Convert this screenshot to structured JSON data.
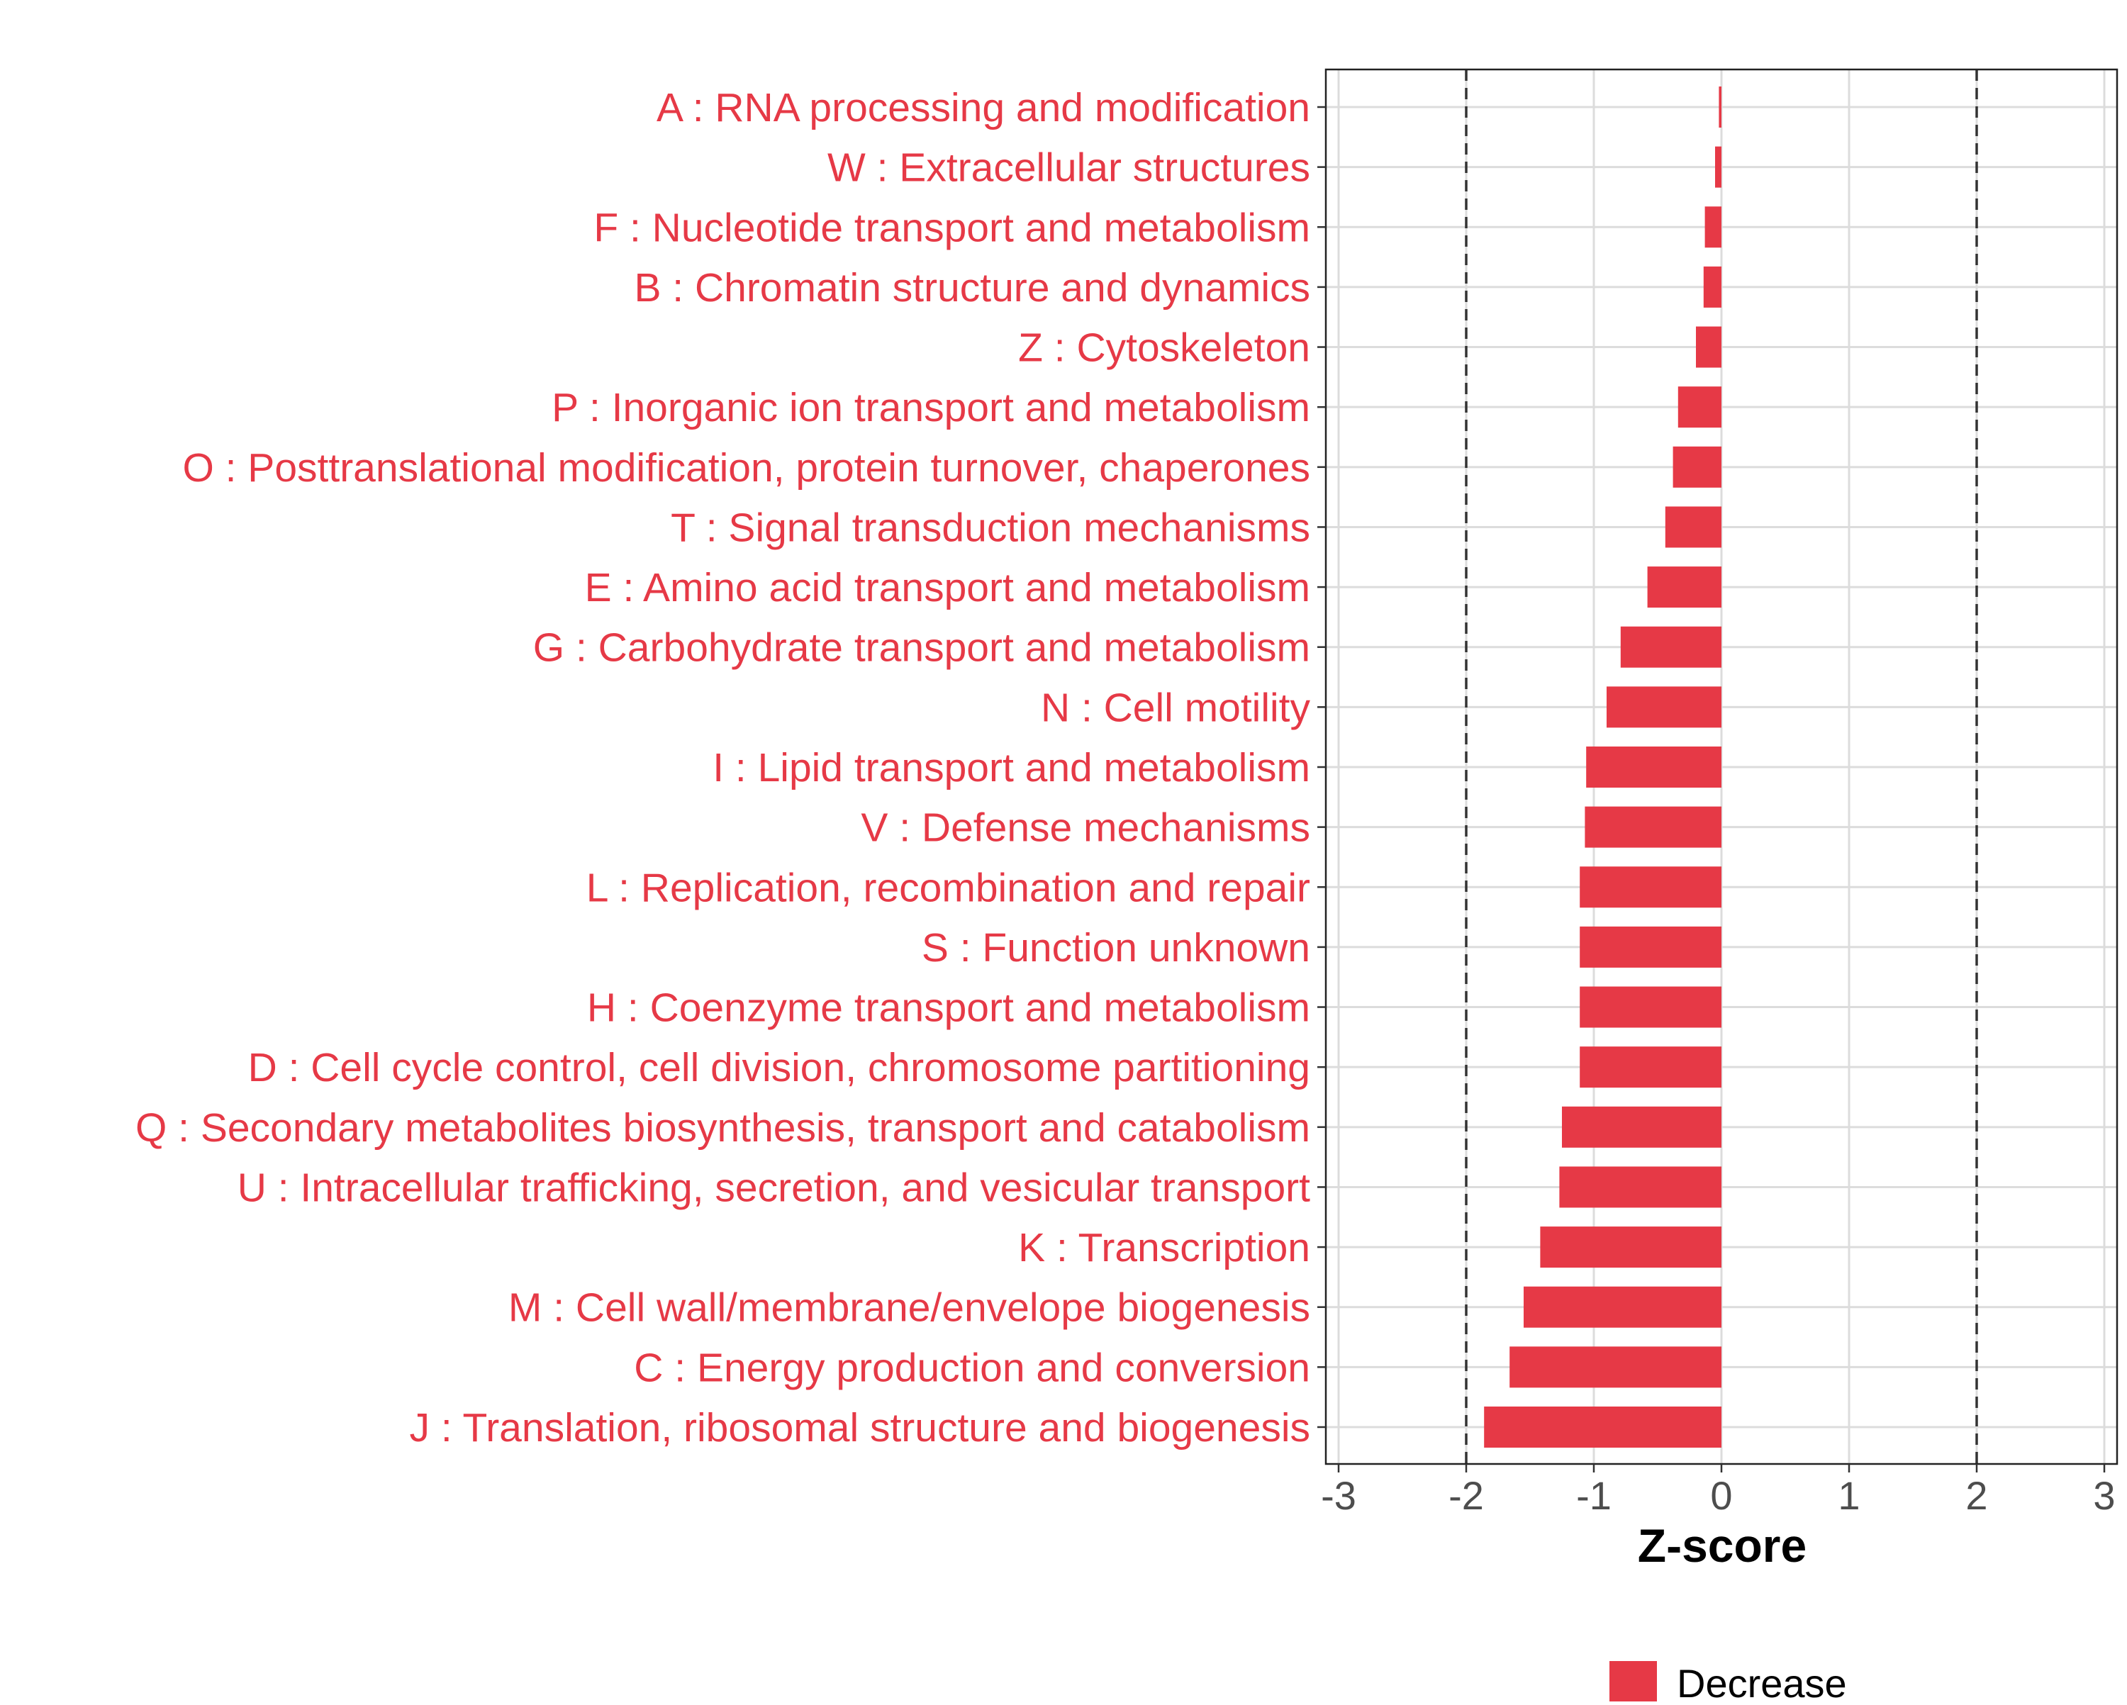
{
  "chart_data": {
    "type": "bar",
    "orientation": "horizontal",
    "categories": [
      "A : RNA processing and modification",
      "W : Extracellular structures",
      "F : Nucleotide transport and metabolism",
      "B : Chromatin structure and dynamics",
      "Z : Cytoskeleton",
      "P : Inorganic ion transport and metabolism",
      "O : Posttranslational modification, protein turnover, chaperones",
      "T : Signal transduction mechanisms",
      "E : Amino acid transport and metabolism",
      "G : Carbohydrate transport and metabolism",
      "N : Cell motility",
      "I : Lipid transport and metabolism",
      "V : Defense mechanisms",
      "L : Replication, recombination and repair",
      "S : Function unknown",
      "H : Coenzyme transport and metabolism",
      "D : Cell cycle control, cell division, chromosome partitioning",
      "Q : Secondary metabolites biosynthesis, transport and catabolism",
      "U : Intracellular trafficking, secretion, and vesicular transport",
      "K : Transcription",
      "M : Cell wall/membrane/envelope biogenesis",
      "C : Energy production and conversion",
      "J : Translation, ribosomal structure and biogenesis"
    ],
    "series": [
      {
        "name": "Decrease",
        "color": "#e63946",
        "values": [
          -0.02,
          -0.05,
          -0.13,
          -0.14,
          -0.2,
          -0.34,
          -0.38,
          -0.44,
          -0.58,
          -0.79,
          -0.9,
          -1.06,
          -1.07,
          -1.11,
          -1.11,
          -1.11,
          -1.11,
          -1.25,
          -1.27,
          -1.42,
          -1.55,
          -1.66,
          -1.86
        ]
      }
    ],
    "xlim": [
      -3.1,
      3.1
    ],
    "x_ticks": [
      -3,
      -2,
      -1,
      0,
      1,
      2,
      3
    ],
    "x_tick_labels": [
      "-3",
      "-2",
      "-1",
      "0",
      "1",
      "2",
      "3"
    ],
    "reference_lines": [
      -2,
      2
    ],
    "xlabel": "Z-score",
    "ylabel": "",
    "label_color": "#e63946",
    "grid": true,
    "legend": {
      "position": "bottom",
      "entries": [
        "Decrease"
      ]
    }
  }
}
